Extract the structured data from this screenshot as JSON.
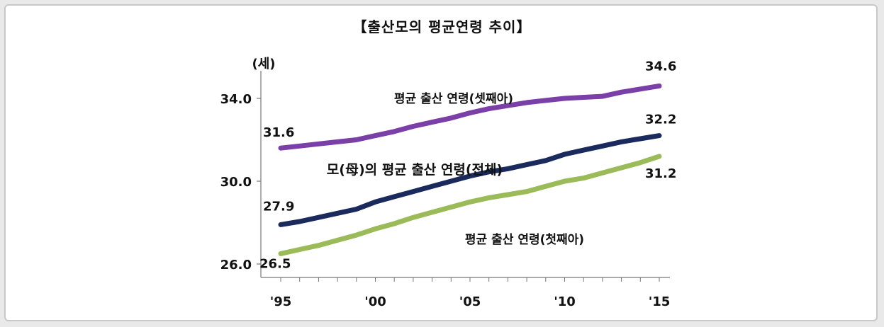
{
  "chart_data": {
    "type": "line",
    "title": "【출산모의 평균연령 추이】",
    "unit": "(세)",
    "x": [
      1995,
      1996,
      1997,
      1998,
      1999,
      2000,
      2001,
      2002,
      2003,
      2004,
      2005,
      2006,
      2007,
      2008,
      2009,
      2010,
      2011,
      2012,
      2013,
      2014,
      2015
    ],
    "xticks": [
      {
        "x": 1995,
        "label": "'95"
      },
      {
        "x": 2000,
        "label": "'00"
      },
      {
        "x": 2005,
        "label": "'05"
      },
      {
        "x": 2010,
        "label": "'10"
      },
      {
        "x": 2015,
        "label": "'15"
      }
    ],
    "yticks": [
      {
        "y": 26.0,
        "label": "26.0"
      },
      {
        "y": 30.0,
        "label": "30.0"
      },
      {
        "y": 34.0,
        "label": "34.0"
      }
    ],
    "ylim": [
      26.0,
      36.0
    ],
    "grid": false,
    "series": [
      {
        "name": "평균 출산 연령(셋째아)",
        "color": "#7B3FA8",
        "values": [
          31.6,
          31.7,
          31.8,
          31.9,
          32.0,
          32.2,
          32.4,
          32.65,
          32.85,
          33.05,
          33.3,
          33.5,
          33.65,
          33.8,
          33.9,
          34.0,
          34.05,
          34.1,
          34.3,
          34.45,
          34.6
        ]
      },
      {
        "name": "모(母)의 평균 출산 연령(전체)",
        "color": "#1A2A5C",
        "values": [
          27.9,
          28.05,
          28.25,
          28.45,
          28.65,
          29.0,
          29.25,
          29.5,
          29.75,
          30.0,
          30.25,
          30.45,
          30.6,
          30.8,
          31.0,
          31.3,
          31.5,
          31.7,
          31.9,
          32.05,
          32.2
        ]
      },
      {
        "name": "평균 출산 연령(첫째아)",
        "color": "#9BBB59",
        "values": [
          26.5,
          26.7,
          26.9,
          27.15,
          27.4,
          27.7,
          27.95,
          28.25,
          28.5,
          28.75,
          29.0,
          29.2,
          29.35,
          29.5,
          29.75,
          30.0,
          30.15,
          30.4,
          30.65,
          30.9,
          31.2
        ]
      }
    ],
    "data_labels": [
      {
        "text": "31.6",
        "series": 0,
        "point": "first"
      },
      {
        "text": "34.6",
        "series": 0,
        "point": "last"
      },
      {
        "text": "27.9",
        "series": 1,
        "point": "first"
      },
      {
        "text": "32.2",
        "series": 1,
        "point": "last"
      },
      {
        "text": "26.5",
        "series": 2,
        "point": "first"
      },
      {
        "text": "31.2",
        "series": 2,
        "point": "last"
      }
    ]
  }
}
